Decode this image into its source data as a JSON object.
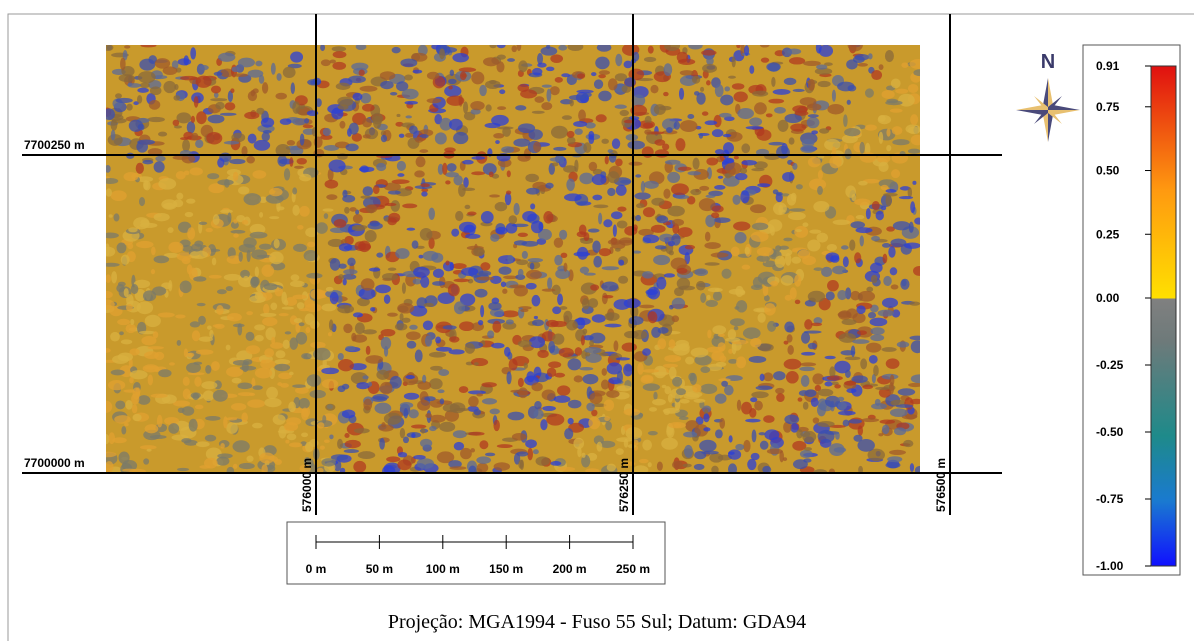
{
  "map": {
    "grid_labels_y": [
      "7700250 m",
      "7700000 m"
    ],
    "grid_labels_x": [
      "576000 m",
      "576250 m",
      "576500 m"
    ],
    "scale_bar": [
      "0 m",
      "50 m",
      "100 m",
      "150 m",
      "200 m",
      "250 m"
    ],
    "north": "N",
    "colorbar_ticks": [
      {
        "value": 0.91,
        "label": "0.91"
      },
      {
        "value": 0.75,
        "label": "0.75"
      },
      {
        "value": 0.5,
        "label": "0.50"
      },
      {
        "value": 0.25,
        "label": "0.25"
      },
      {
        "value": 0,
        "label": "0.00"
      },
      {
        "value": -0.25,
        "label": "-0.25"
      },
      {
        "value": -0.5,
        "label": "-0.50"
      },
      {
        "value": -0.75,
        "label": "-0.75"
      },
      {
        "value": -1,
        "label": "-1.00"
      }
    ],
    "caption": "Projeção: MGA1994 - Fuso 55 Sul; Datum: GDA94"
  }
}
